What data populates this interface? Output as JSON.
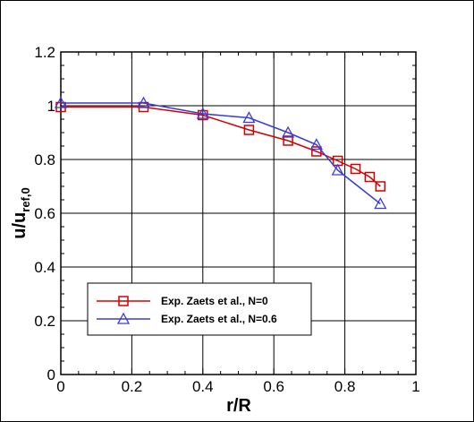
{
  "chart_data": {
    "type": "line",
    "xlabel": "r/R",
    "ylabel_main": "u/u",
    "ylabel_sub": "ref,0",
    "xlim": [
      0,
      1
    ],
    "ylim": [
      0,
      1.2
    ],
    "x_ticks": [
      0,
      0.2,
      0.4,
      0.6,
      0.8,
      1
    ],
    "x_tick_labels": [
      "0",
      "0.2",
      "0.4",
      "0.6",
      "0.8",
      "1"
    ],
    "y_ticks": [
      0,
      0.2,
      0.4,
      0.6,
      0.8,
      1,
      1.2
    ],
    "y_tick_labels": [
      "0",
      "0.2",
      "0.4",
      "0.6",
      "0.8",
      "1",
      "1.2"
    ],
    "grid": true,
    "legend_position": "lower-left",
    "series": [
      {
        "name": "Exp. Zaets et al., N=0",
        "color": "#d40000",
        "marker": "square",
        "x": [
          0,
          0.233,
          0.4,
          0.53,
          0.64,
          0.72,
          0.78,
          0.83,
          0.87,
          0.9
        ],
        "y": [
          0.995,
          0.995,
          0.965,
          0.91,
          0.87,
          0.83,
          0.795,
          0.765,
          0.735,
          0.7
        ]
      },
      {
        "name": "Exp. Zaets et al., N=0.6",
        "color": "#3a3adc",
        "marker": "triangle",
        "x": [
          0,
          0.233,
          0.4,
          0.53,
          0.64,
          0.72,
          0.78,
          0.9
        ],
        "y": [
          1.01,
          1.01,
          0.97,
          0.955,
          0.9,
          0.855,
          0.76,
          0.635
        ]
      }
    ]
  }
}
